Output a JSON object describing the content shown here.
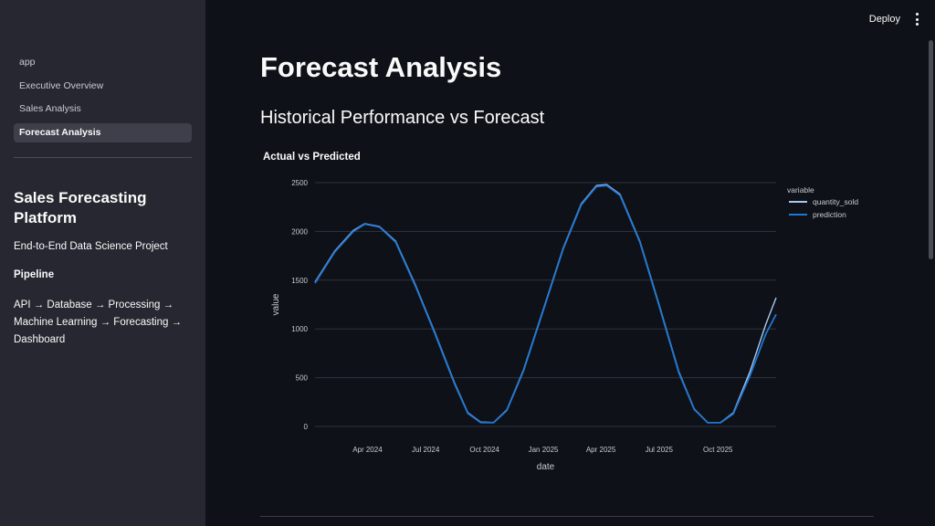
{
  "header": {
    "deploy_label": "Deploy"
  },
  "sidebar": {
    "nav": [
      {
        "label": "app",
        "active": false
      },
      {
        "label": "Executive Overview",
        "active": false
      },
      {
        "label": "Sales Analysis",
        "active": false
      },
      {
        "label": "Forecast Analysis",
        "active": true
      }
    ],
    "title": "Sales Forecasting Platform",
    "subtitle": "End-to-End Data Science Project",
    "pipeline_heading": "Pipeline",
    "pipeline_text": "API → Database → Processing → Machine Learning → Forecasting → Dashboard"
  },
  "main": {
    "title": "Forecast Analysis",
    "section_title": "Historical Performance vs Forecast",
    "chart_title": "Actual vs Predicted"
  },
  "colors": {
    "background": "#0e1117",
    "sidebar": "#262730",
    "series_actual": "#a9c8f0",
    "series_prediction": "#1f77d4"
  },
  "chart_data": {
    "type": "line",
    "title": "Actual vs Predicted",
    "xlabel": "date",
    "ylabel": "value",
    "ylim": [
      0,
      2500
    ],
    "y_ticks": [
      0,
      500,
      1000,
      1500,
      2000,
      2500
    ],
    "x_range": [
      "2024-01-10",
      "2025-12-31"
    ],
    "x_ticks": [
      {
        "date": "2024-04-01",
        "label": "Apr 2024"
      },
      {
        "date": "2024-07-01",
        "label": "Jul 2024"
      },
      {
        "date": "2024-10-01",
        "label": "Oct 2024"
      },
      {
        "date": "2025-01-01",
        "label": "Jan 2025"
      },
      {
        "date": "2025-04-01",
        "label": "Apr 2025"
      },
      {
        "date": "2025-07-01",
        "label": "Jul 2025"
      },
      {
        "date": "2025-10-01",
        "label": "Oct 2025"
      }
    ],
    "legend_title": "variable",
    "legend_position": "top-right",
    "grid": true,
    "series": [
      {
        "name": "quantity_sold",
        "color": "#a9c8f0",
        "points": [
          {
            "x": "2024-01-10",
            "y": 1480
          },
          {
            "x": "2024-02-10",
            "y": 1800
          },
          {
            "x": "2024-03-10",
            "y": 2010
          },
          {
            "x": "2024-03-28",
            "y": 2080
          },
          {
            "x": "2024-04-20",
            "y": 2050
          },
          {
            "x": "2024-05-15",
            "y": 1900
          },
          {
            "x": "2024-06-15",
            "y": 1450
          },
          {
            "x": "2024-07-15",
            "y": 970
          },
          {
            "x": "2024-08-15",
            "y": 450
          },
          {
            "x": "2024-09-05",
            "y": 140
          },
          {
            "x": "2024-09-25",
            "y": 45
          },
          {
            "x": "2024-10-15",
            "y": 40
          },
          {
            "x": "2024-11-05",
            "y": 170
          },
          {
            "x": "2024-12-01",
            "y": 580
          },
          {
            "x": "2025-01-01",
            "y": 1200
          },
          {
            "x": "2025-02-01",
            "y": 1830
          },
          {
            "x": "2025-03-01",
            "y": 2280
          },
          {
            "x": "2025-03-25",
            "y": 2470
          },
          {
            "x": "2025-04-10",
            "y": 2480
          },
          {
            "x": "2025-05-01",
            "y": 2380
          },
          {
            "x": "2025-06-01",
            "y": 1900
          },
          {
            "x": "2025-07-01",
            "y": 1250
          },
          {
            "x": "2025-08-01",
            "y": 560
          },
          {
            "x": "2025-08-25",
            "y": 180
          },
          {
            "x": "2025-09-15",
            "y": 40
          },
          {
            "x": "2025-10-05",
            "y": 40
          },
          {
            "x": "2025-10-25",
            "y": 140
          },
          {
            "x": "2025-11-20",
            "y": 560
          },
          {
            "x": "2025-12-15",
            "y": 1050
          },
          {
            "x": "2025-12-31",
            "y": 1320
          }
        ]
      },
      {
        "name": "prediction",
        "color": "#1f77d4",
        "points": [
          {
            "x": "2024-01-10",
            "y": 1470
          },
          {
            "x": "2024-02-10",
            "y": 1790
          },
          {
            "x": "2024-03-10",
            "y": 2000
          },
          {
            "x": "2024-03-28",
            "y": 2075
          },
          {
            "x": "2024-04-20",
            "y": 2045
          },
          {
            "x": "2024-05-15",
            "y": 1890
          },
          {
            "x": "2024-06-15",
            "y": 1440
          },
          {
            "x": "2024-07-15",
            "y": 960
          },
          {
            "x": "2024-08-15",
            "y": 440
          },
          {
            "x": "2024-09-05",
            "y": 135
          },
          {
            "x": "2024-09-25",
            "y": 40
          },
          {
            "x": "2024-10-15",
            "y": 38
          },
          {
            "x": "2024-11-05",
            "y": 165
          },
          {
            "x": "2024-12-01",
            "y": 570
          },
          {
            "x": "2025-01-01",
            "y": 1190
          },
          {
            "x": "2025-02-01",
            "y": 1820
          },
          {
            "x": "2025-03-01",
            "y": 2270
          },
          {
            "x": "2025-03-25",
            "y": 2460
          },
          {
            "x": "2025-04-10",
            "y": 2470
          },
          {
            "x": "2025-05-01",
            "y": 2370
          },
          {
            "x": "2025-06-01",
            "y": 1890
          },
          {
            "x": "2025-07-01",
            "y": 1240
          },
          {
            "x": "2025-08-01",
            "y": 550
          },
          {
            "x": "2025-08-25",
            "y": 175
          },
          {
            "x": "2025-09-15",
            "y": 38
          },
          {
            "x": "2025-10-05",
            "y": 38
          },
          {
            "x": "2025-10-25",
            "y": 130
          },
          {
            "x": "2025-11-20",
            "y": 520
          },
          {
            "x": "2025-12-15",
            "y": 950
          },
          {
            "x": "2025-12-31",
            "y": 1150
          }
        ]
      }
    ]
  }
}
